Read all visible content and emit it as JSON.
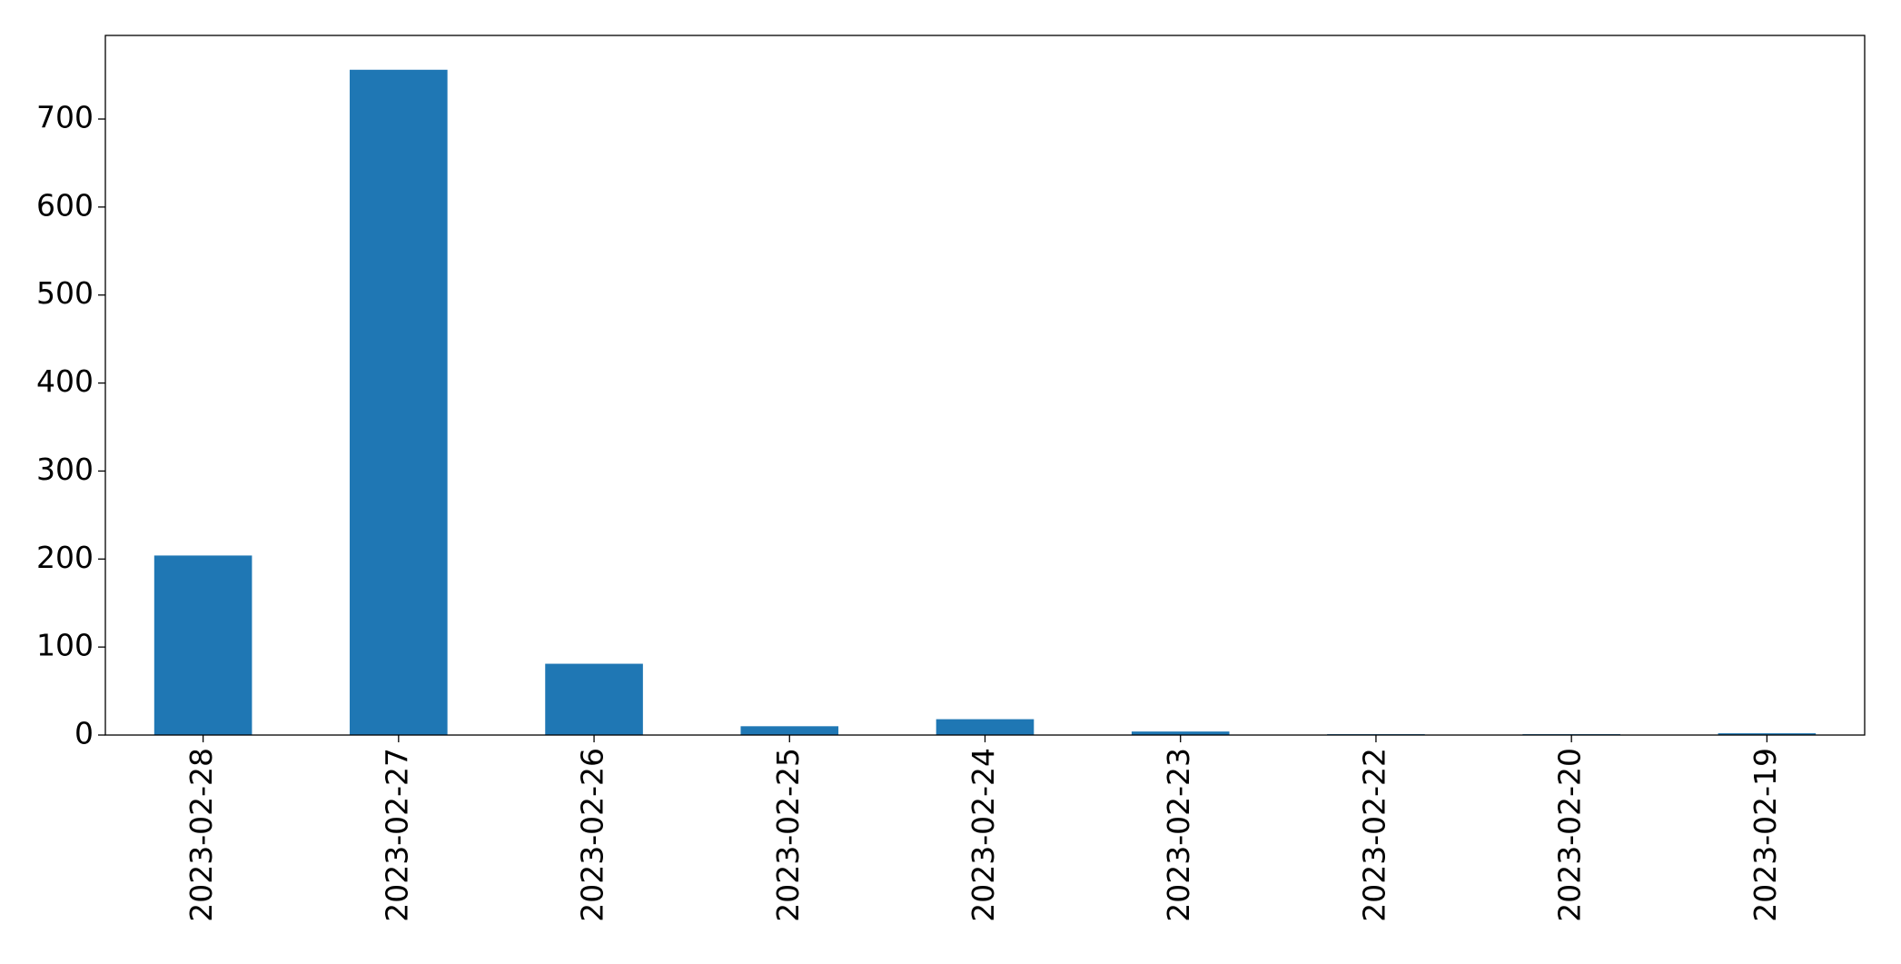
{
  "chart_data": {
    "type": "bar",
    "categories": [
      "2023-02-28",
      "2023-02-27",
      "2023-02-26",
      "2023-02-25",
      "2023-02-24",
      "2023-02-23",
      "2023-02-22",
      "2023-02-20",
      "2023-02-19"
    ],
    "values": [
      204,
      756,
      81,
      10,
      18,
      4,
      1,
      1,
      2
    ],
    "color": "#1f77b4",
    "ylim": [
      0,
      795
    ],
    "yticks": [
      0,
      100,
      200,
      300,
      400,
      500,
      600,
      700
    ],
    "grid": false
  }
}
